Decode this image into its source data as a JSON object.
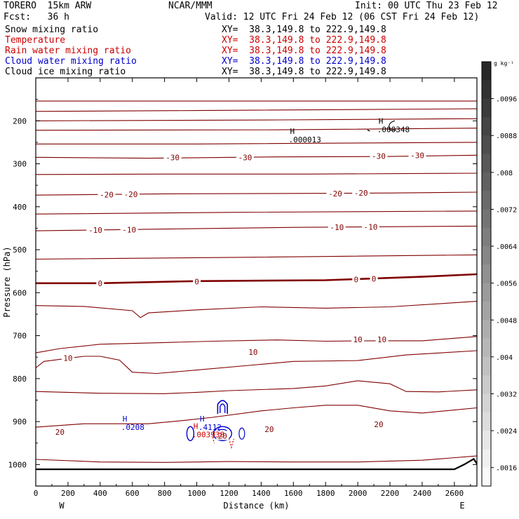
{
  "header": {
    "model": "TORERO  15km ARW",
    "center": "NCAR/MMM",
    "init": "Init: 00 UTC Thu 23 Feb 12",
    "fcst": "Fcst:   36 h",
    "valid": "Valid: 12 UTC Fri 24 Feb 12 (06 CST Fri 24 Feb 12)"
  },
  "legend": [
    {
      "label": "Snow mixing ratio",
      "xy": "XY=  38.3,149.8 to 222.9,149.8",
      "color": "#000000"
    },
    {
      "label": "Temperature",
      "xy": "XY=  38.3,149.8 to 222.9,149.8",
      "color": "#cc0000"
    },
    {
      "label": "Rain water mixing ratio",
      "xy": "XY=  38.3,149.8 to 222.9,149.8",
      "color": "#cc0000"
    },
    {
      "label": "Cloud water mixing ratio",
      "xy": "XY=  38.3,149.8 to 222.9,149.8",
      "color": "#0000cc"
    },
    {
      "label": "Cloud ice mixing ratio",
      "xy": "XY=  38.3,149.8 to 222.9,149.8",
      "color": "#000000"
    }
  ],
  "chart_data": {
    "type": "contour",
    "xlabel": "Distance (km)",
    "ylabel": "Pressure (hPa)",
    "xlim": [
      0,
      2740
    ],
    "ylim": [
      1050,
      100
    ],
    "x_ticks": [
      0,
      200,
      400,
      600,
      800,
      1000,
      1200,
      1400,
      1600,
      1800,
      2000,
      2200,
      2400,
      2600
    ],
    "y_ticks": [
      200,
      300,
      400,
      500,
      600,
      700,
      800,
      900,
      1000
    ],
    "west_label": "W",
    "east_label": "E",
    "colorbar": {
      "unit": "g kg⁻¹",
      "ticks": [
        ".0096",
        ".0088",
        ".008",
        ".0072",
        ".0064",
        ".0056",
        ".0048",
        ".004",
        ".0032",
        ".0024",
        ".0016"
      ],
      "tick_values": [
        0.0096,
        0.0088,
        0.008,
        0.0072,
        0.0064,
        0.0056,
        0.0048,
        0.004,
        0.0032,
        0.0024,
        0.0016
      ],
      "range": [
        0.0012,
        0.0104
      ]
    },
    "temperature_isotherms": [
      {
        "value": null,
        "points": [
          [
            0,
            154
          ],
          [
            2740,
            154
          ]
        ]
      },
      {
        "value": null,
        "points": [
          [
            0,
            178
          ],
          [
            1000,
            176
          ],
          [
            2740,
            172
          ]
        ]
      },
      {
        "value": null,
        "points": [
          [
            0,
            200
          ],
          [
            1500,
            198
          ],
          [
            2740,
            195
          ]
        ]
      },
      {
        "value": null,
        "points": [
          [
            0,
            222
          ],
          [
            1500,
            221
          ],
          [
            2740,
            217
          ]
        ]
      },
      {
        "value": null,
        "points": [
          [
            0,
            254
          ],
          [
            1000,
            254
          ],
          [
            2740,
            250
          ]
        ]
      },
      {
        "value": "-30",
        "points": [
          [
            0,
            285
          ],
          [
            700,
            287
          ],
          [
            1500,
            284
          ],
          [
            2200,
            283
          ],
          [
            2740,
            280
          ]
        ]
      },
      {
        "value": null,
        "points": [
          [
            0,
            325
          ],
          [
            800,
            324
          ],
          [
            1700,
            324
          ],
          [
            2740,
            322
          ]
        ]
      },
      {
        "value": "-20",
        "points": [
          [
            0,
            373
          ],
          [
            800,
            370
          ],
          [
            1600,
            369
          ],
          [
            2200,
            368
          ],
          [
            2740,
            366
          ]
        ]
      },
      {
        "value": null,
        "points": [
          [
            0,
            417
          ],
          [
            1200,
            413
          ],
          [
            2740,
            410
          ]
        ]
      },
      {
        "value": "-10",
        "points": [
          [
            0,
            456
          ],
          [
            800,
            452
          ],
          [
            1600,
            448
          ],
          [
            2740,
            445
          ]
        ]
      },
      {
        "value": null,
        "points": [
          [
            0,
            522
          ],
          [
            1200,
            518
          ],
          [
            2740,
            512
          ]
        ]
      },
      {
        "value": "0",
        "points": [
          [
            0,
            578
          ],
          [
            400,
            578
          ],
          [
            1000,
            573
          ],
          [
            1800,
            571
          ],
          [
            2400,
            563
          ],
          [
            2740,
            557
          ]
        ]
      },
      {
        "value": null,
        "points": [
          [
            0,
            630
          ],
          [
            300,
            632
          ],
          [
            600,
            642
          ],
          [
            650,
            658
          ],
          [
            700,
            647
          ],
          [
            1000,
            640
          ],
          [
            1400,
            633
          ],
          [
            1800,
            636
          ],
          [
            2200,
            633
          ],
          [
            2740,
            620
          ]
        ]
      },
      {
        "value": "10",
        "points": [
          [
            0,
            740
          ],
          [
            150,
            730
          ],
          [
            400,
            720
          ],
          [
            800,
            716
          ],
          [
            1100,
            713
          ],
          [
            1500,
            710
          ],
          [
            1800,
            713
          ],
          [
            2100,
            712
          ],
          [
            2400,
            712
          ],
          [
            2740,
            702
          ]
        ]
      },
      {
        "value": null,
        "points": [
          [
            0,
            775
          ],
          [
            50,
            760
          ],
          [
            300,
            748
          ],
          [
            400,
            748
          ],
          [
            520,
            757
          ],
          [
            600,
            785
          ],
          [
            750,
            788
          ],
          [
            1000,
            780
          ],
          [
            1300,
            770
          ],
          [
            1600,
            760
          ],
          [
            2000,
            758
          ],
          [
            2300,
            745
          ],
          [
            2740,
            735
          ]
        ]
      },
      {
        "value": null,
        "points": [
          [
            0,
            830
          ],
          [
            400,
            834
          ],
          [
            800,
            835
          ],
          [
            1000,
            832
          ],
          [
            1200,
            828
          ],
          [
            1600,
            823
          ],
          [
            1800,
            817
          ],
          [
            2000,
            805
          ],
          [
            2200,
            812
          ],
          [
            2300,
            830
          ],
          [
            2500,
            831
          ],
          [
            2740,
            826
          ]
        ]
      },
      {
        "value": "20",
        "points": [
          [
            0,
            913
          ],
          [
            300,
            905
          ],
          [
            700,
            905
          ],
          [
            900,
            898
          ],
          [
            1100,
            890
          ],
          [
            1400,
            875
          ],
          [
            1600,
            868
          ],
          [
            1800,
            862
          ],
          [
            2000,
            862
          ],
          [
            2200,
            875
          ],
          [
            2400,
            880
          ],
          [
            2600,
            873
          ],
          [
            2740,
            868
          ]
        ]
      },
      {
        "value": null,
        "points": [
          [
            0,
            988
          ],
          [
            400,
            994
          ],
          [
            800,
            995
          ],
          [
            1200,
            993
          ],
          [
            1600,
            994
          ],
          [
            2000,
            994
          ],
          [
            2400,
            990
          ],
          [
            2740,
            980
          ]
        ]
      }
    ],
    "isotherm_labels": [
      {
        "text": "-30",
        "x": 850,
        "p": 285
      },
      {
        "text": "-30",
        "x": 1300,
        "p": 285
      },
      {
        "text": "-30",
        "x": 2130,
        "p": 282
      },
      {
        "text": "-30",
        "x": 2370,
        "p": 280
      },
      {
        "text": "-20",
        "x": 440,
        "p": 372
      },
      {
        "text": "-20",
        "x": 590,
        "p": 371
      },
      {
        "text": "-20",
        "x": 1860,
        "p": 369
      },
      {
        "text": "-20",
        "x": 2020,
        "p": 368
      },
      {
        "text": "-10",
        "x": 370,
        "p": 454
      },
      {
        "text": "-10",
        "x": 580,
        "p": 453
      },
      {
        "text": "-10",
        "x": 1870,
        "p": 448
      },
      {
        "text": "-10",
        "x": 2080,
        "p": 447
      },
      {
        "text": "0",
        "x": 400,
        "p": 578
      },
      {
        "text": "0",
        "x": 1000,
        "p": 574
      },
      {
        "text": "0",
        "x": 1990,
        "p": 569
      },
      {
        "text": "0",
        "x": 2100,
        "p": 568
      },
      {
        "text": "10",
        "x": 200,
        "p": 752
      },
      {
        "text": "10",
        "x": 1350,
        "p": 738
      },
      {
        "text": "10",
        "x": 2000,
        "p": 709
      },
      {
        "text": "10",
        "x": 2150,
        "p": 709
      },
      {
        "text": "20",
        "x": 150,
        "p": 924
      },
      {
        "text": "20",
        "x": 1450,
        "p": 918
      },
      {
        "text": "20",
        "x": 2130,
        "p": 906
      },
      {
        "text": "20",
        "x": 1160,
        "p": 933
      }
    ],
    "ground_pressure": [
      [
        0,
        1011
      ],
      [
        2600,
        1011
      ],
      [
        2660,
        1000
      ],
      [
        2720,
        987
      ],
      [
        2740,
        998
      ]
    ],
    "maxima_labels": [
      {
        "marker": "H",
        "value": ".000013",
        "x": 1640,
        "p": 234,
        "color": "#000000"
      },
      {
        "marker": "H",
        "value": ".000348",
        "x": 2190,
        "p": 210,
        "color": "#000000"
      },
      {
        "marker": "H",
        "value": ".0208",
        "x": 600,
        "p": 903,
        "color": "#0000cc"
      },
      {
        "marker": "H",
        "value": ".4112",
        "x": 1080,
        "p": 903,
        "color": "#0000cc"
      },
      {
        "marker": "H",
        "value": ".003938",
        "x": 1040,
        "p": 920,
        "color": "#cc0000"
      }
    ]
  }
}
